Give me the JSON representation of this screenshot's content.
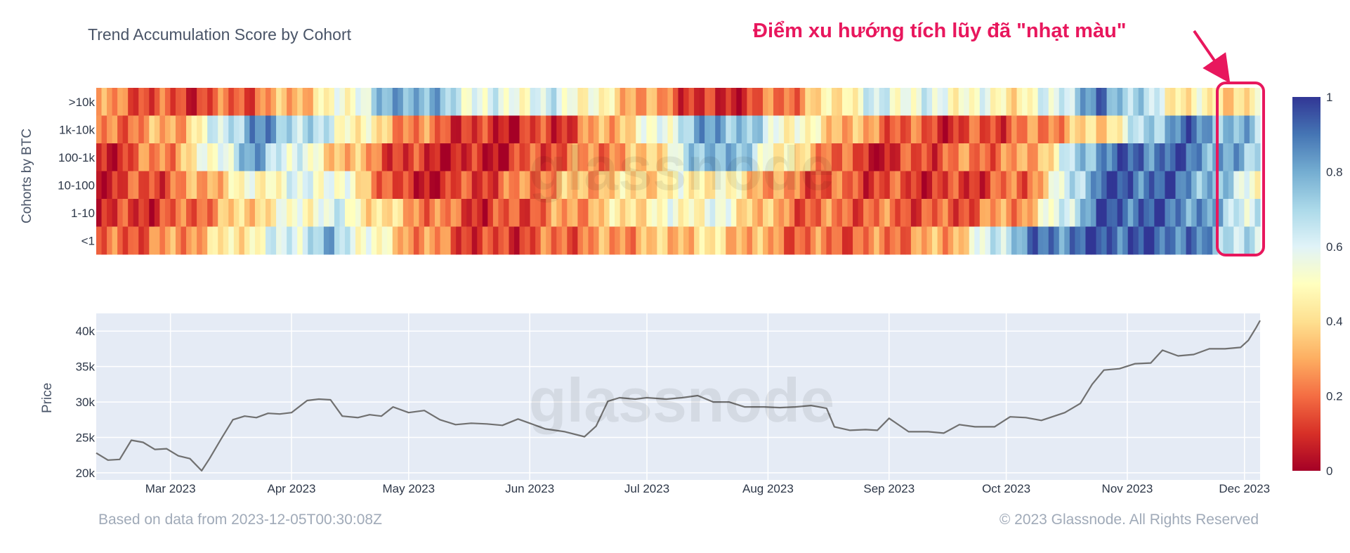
{
  "title": "Trend Accumulation Score by Cohort",
  "annotation": "Điểm xu hướng tích lũy đã \"nhạt màu\"",
  "footer_left": "Based on data from 2023-12-05T00:30:08Z",
  "footer_right": "© 2023 Glassnode. All Rights Reserved",
  "watermark": "glassnode",
  "colors": {
    "annotation": "#e8175d",
    "line": "#707070",
    "plot_bg": "#e5ebf5",
    "grid": "#ffffff"
  },
  "chart_data": [
    {
      "type": "heatmap",
      "ylabel": "Cohorts by BTC",
      "cohorts": [
        ">10k",
        "1k-10k",
        "100-1k",
        "10-100",
        "1-10",
        "<1"
      ],
      "x_start": "2023-02-10",
      "x_end": "2023-12-05",
      "colorscale": [
        "#a50026",
        "#d73027",
        "#f46d43",
        "#fdae61",
        "#fee090",
        "#ffffbf",
        "#e0f3f8",
        "#abd9e9",
        "#74add1",
        "#4575b4",
        "#313695"
      ],
      "colorbar": {
        "range": [
          0,
          1
        ],
        "ticks": [
          "0",
          "0.2",
          "0.4",
          "0.6",
          "0.8",
          "1"
        ]
      },
      "segments": [
        {
          "cohort": ">10k",
          "scores": [
            0.25,
            0.12,
            0.2,
            0.45,
            0.85,
            0.55,
            0.6,
            0.3,
            0.05,
            0.25,
            0.6,
            0.55,
            0.45,
            0.88,
            0.45,
            0.4
          ]
        },
        {
          "cohort": "1k-10k",
          "scores": [
            0.2,
            0.3,
            0.85,
            0.6,
            0.25,
            0.08,
            0.12,
            0.45,
            0.85,
            0.5,
            0.25,
            0.1,
            0.2,
            0.4,
            0.9,
            0.7
          ]
        },
        {
          "cohort": "100-1k",
          "scores": [
            0.05,
            0.3,
            0.8,
            0.4,
            0.1,
            0.05,
            0.2,
            0.3,
            0.85,
            0.4,
            0.05,
            0.2,
            0.25,
            0.9,
            0.92,
            0.7
          ]
        },
        {
          "cohort": "10-100",
          "scores": [
            0.08,
            0.2,
            0.5,
            0.6,
            0.05,
            0.15,
            0.3,
            0.4,
            0.5,
            0.2,
            0.15,
            0.1,
            0.2,
            0.95,
            0.9,
            0.55
          ]
        },
        {
          "cohort": "1-10",
          "scores": [
            0.08,
            0.15,
            0.4,
            0.6,
            0.3,
            0.1,
            0.25,
            0.45,
            0.55,
            0.2,
            0.2,
            0.15,
            0.3,
            0.95,
            0.9,
            0.6
          ]
        },
        {
          "cohort": "<1",
          "scores": [
            0.15,
            0.25,
            0.5,
            0.75,
            0.3,
            0.1,
            0.2,
            0.3,
            0.4,
            0.2,
            0.2,
            0.3,
            0.85,
            0.95,
            0.92,
            0.6
          ]
        }
      ]
    },
    {
      "type": "line",
      "ylabel": "Price",
      "ylim": [
        19000,
        42500
      ],
      "yticks": [
        20000,
        25000,
        30000,
        35000,
        40000
      ],
      "ytick_labels": [
        "20k",
        "25k",
        "30k",
        "35k",
        "40k"
      ],
      "xlim": [
        "2023-02-10",
        "2023-12-05"
      ],
      "xticks": [
        "2023-03-01",
        "2023-04-01",
        "2023-05-01",
        "2023-06-01",
        "2023-07-01",
        "2023-08-01",
        "2023-09-01",
        "2023-10-01",
        "2023-11-01",
        "2023-12-01"
      ],
      "xtick_labels": [
        "Mar 2023",
        "Apr 2023",
        "May 2023",
        "Jun 2023",
        "Jul 2023",
        "Aug 2023",
        "Sep 2023",
        "Oct 2023",
        "Nov 2023",
        "Dec 2023"
      ],
      "series": [
        {
          "x": [
            "2023-02-10",
            "2023-02-13",
            "2023-02-16",
            "2023-02-19",
            "2023-02-22",
            "2023-02-25",
            "2023-02-28",
            "2023-03-03",
            "2023-03-06",
            "2023-03-09",
            "2023-03-11",
            "2023-03-14",
            "2023-03-17",
            "2023-03-20",
            "2023-03-23",
            "2023-03-26",
            "2023-03-29",
            "2023-04-01",
            "2023-04-05",
            "2023-04-08",
            "2023-04-11",
            "2023-04-14",
            "2023-04-18",
            "2023-04-21",
            "2023-04-24",
            "2023-04-27",
            "2023-05-01",
            "2023-05-05",
            "2023-05-09",
            "2023-05-13",
            "2023-05-17",
            "2023-05-21",
            "2023-05-25",
            "2023-05-29",
            "2023-06-01",
            "2023-06-05",
            "2023-06-10",
            "2023-06-15",
            "2023-06-18",
            "2023-06-21",
            "2023-06-24",
            "2023-06-28",
            "2023-07-01",
            "2023-07-06",
            "2023-07-10",
            "2023-07-14",
            "2023-07-18",
            "2023-07-22",
            "2023-07-26",
            "2023-07-31",
            "2023-08-04",
            "2023-08-08",
            "2023-08-12",
            "2023-08-16",
            "2023-08-18",
            "2023-08-22",
            "2023-08-26",
            "2023-08-29",
            "2023-09-01",
            "2023-09-06",
            "2023-09-11",
            "2023-09-15",
            "2023-09-19",
            "2023-09-23",
            "2023-09-28",
            "2023-10-02",
            "2023-10-06",
            "2023-10-10",
            "2023-10-16",
            "2023-10-20",
            "2023-10-23",
            "2023-10-26",
            "2023-10-30",
            "2023-11-03",
            "2023-11-07",
            "2023-11-10",
            "2023-11-14",
            "2023-11-18",
            "2023-11-22",
            "2023-11-26",
            "2023-11-30",
            "2023-12-02",
            "2023-12-04",
            "2023-12-05"
          ],
          "y": [
            22800,
            21800,
            21900,
            24600,
            24300,
            23300,
            23400,
            22400,
            22000,
            20300,
            22000,
            24800,
            27500,
            28000,
            27800,
            28400,
            28300,
            28500,
            30200,
            30400,
            30300,
            28000,
            27800,
            28200,
            28000,
            29300,
            28500,
            28800,
            27500,
            26800,
            27000,
            26900,
            26700,
            27600,
            27000,
            26200,
            25800,
            25100,
            26600,
            30100,
            30600,
            30400,
            30600,
            30400,
            30600,
            30900,
            30000,
            30000,
            29300,
            29300,
            29200,
            29300,
            29500,
            29100,
            26500,
            26000,
            26100,
            26000,
            27700,
            25800,
            25800,
            25600,
            26800,
            26500,
            26500,
            27900,
            27800,
            27400,
            28500,
            29800,
            32500,
            34500,
            34700,
            35400,
            35500,
            37300,
            36500,
            36700,
            37500,
            37500,
            37700,
            38700,
            40500,
            41500
          ]
        }
      ]
    }
  ]
}
